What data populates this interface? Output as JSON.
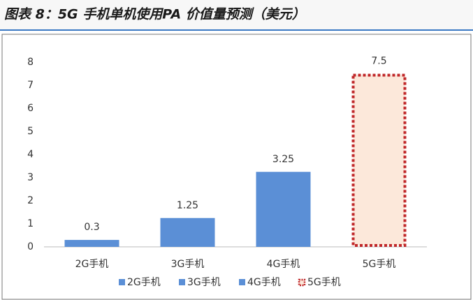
{
  "header": {
    "title": "图表 8：5G 手机单机使用PA 价值量预测（美元）"
  },
  "chart_data": {
    "type": "bar",
    "categories": [
      "2G手机",
      "3G手机",
      "4G手机",
      "5G手机"
    ],
    "series": [
      {
        "name": "2G手机",
        "color": "#5b8fd6",
        "values": [
          0.3,
          null,
          null,
          null
        ]
      },
      {
        "name": "3G手机",
        "color": "#5b8fd6",
        "values": [
          null,
          1.25,
          null,
          null
        ]
      },
      {
        "name": "4G手机",
        "color": "#5b8fd6",
        "values": [
          null,
          null,
          3.25,
          null
        ]
      },
      {
        "name": "5G手机",
        "color": "#c0282a",
        "fill": "#fce8da",
        "dashed": true,
        "values": [
          null,
          null,
          null,
          7.5
        ]
      }
    ],
    "ylim": [
      0,
      8
    ],
    "yticks": [
      0,
      1,
      2,
      3,
      4,
      5,
      6,
      7,
      8
    ],
    "grid": false,
    "legend": "bottom"
  }
}
